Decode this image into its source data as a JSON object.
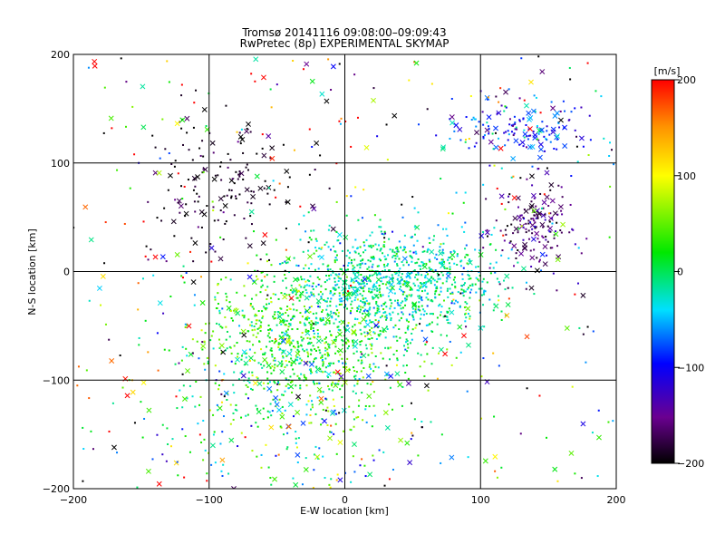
{
  "chart_data": {
    "type": "scatter",
    "title": "Tromsø 20141116 09:08:00–09:09:43",
    "subtitle": "RwPretec (8p) EXPERIMENTAL SKYMAP",
    "xlabel": "E-W location [km]",
    "ylabel": "N-S location [km]",
    "xlim": [
      -200,
      200
    ],
    "ylim": [
      -200,
      200
    ],
    "xticks": [
      -200,
      -100,
      0,
      100,
      200
    ],
    "yticks": [
      -200,
      -100,
      0,
      100,
      200
    ],
    "grid": true,
    "colorbar": {
      "label": "[m/s]",
      "range": [
        -200,
        200
      ],
      "ticks": [
        -200,
        -100,
        0,
        100,
        200
      ],
      "colormap": "rainbow (black-purple-blue-cyan-green-yellow-red)"
    },
    "markers": {
      "small": "dot (short-range echoes)",
      "large": "x (long-range echoes)"
    },
    "clusters": [
      {
        "center": [
          -30,
          -60
        ],
        "spread": [
          40,
          35
        ],
        "velocity_mean": 20,
        "velocity_spread": 35,
        "density": "high"
      },
      {
        "center": [
          40,
          -10
        ],
        "spread": [
          35,
          25
        ],
        "velocity_mean": -20,
        "velocity_spread": 30,
        "density": "high"
      },
      {
        "center": [
          -90,
          80
        ],
        "spread": [
          30,
          35
        ],
        "velocity_mean": -190,
        "velocity_spread": 15,
        "density": "medium"
      },
      {
        "center": [
          130,
          130
        ],
        "spread": [
          25,
          15
        ],
        "velocity_mean": -90,
        "velocity_spread": 40,
        "density": "medium"
      },
      {
        "center": [
          140,
          40
        ],
        "spread": [
          15,
          20
        ],
        "velocity_mean": -160,
        "velocity_spread": 25,
        "density": "medium"
      },
      {
        "center": [
          -40,
          -140
        ],
        "spread": [
          50,
          40
        ],
        "velocity_mean": 0,
        "velocity_spread": 60,
        "density": "low"
      },
      {
        "center": [
          0,
          0
        ],
        "spread": [
          200,
          200
        ],
        "velocity_mean": 0,
        "velocity_spread": 150,
        "density": "sparse"
      }
    ]
  }
}
